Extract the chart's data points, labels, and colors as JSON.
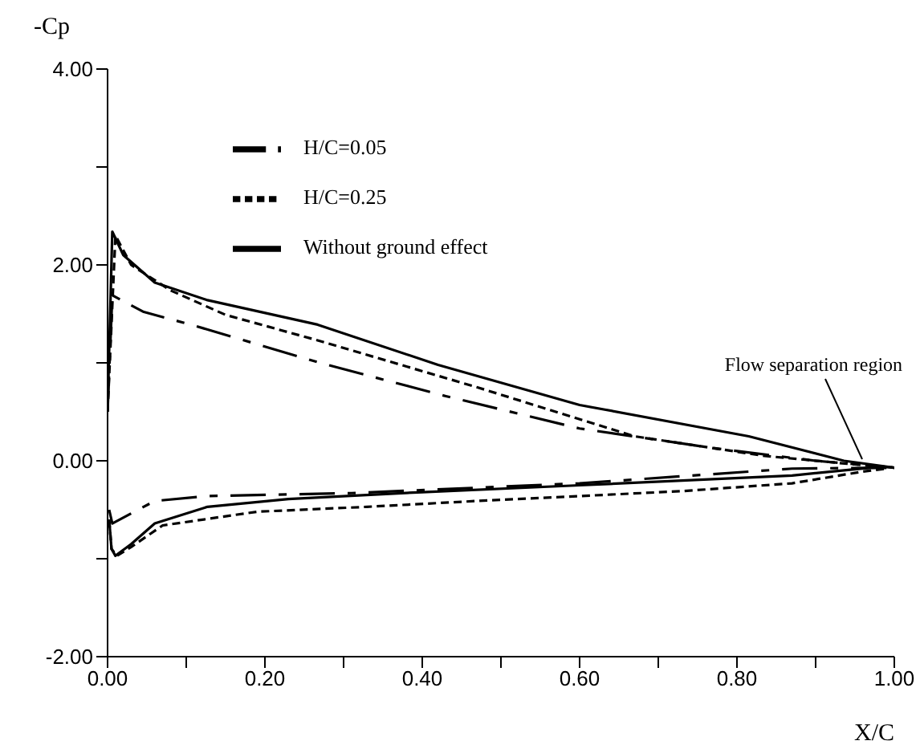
{
  "chart_data": {
    "type": "line",
    "xlabel": "X/C",
    "ylabel": "-Cp",
    "xlim": [
      0,
      1
    ],
    "ylim": [
      -2,
      4
    ],
    "xticks": [
      {
        "value": 0,
        "label": "0.00"
      },
      {
        "value": 0.1,
        "label": null
      },
      {
        "value": 0.2,
        "label": "0.20"
      },
      {
        "value": 0.3,
        "label": null
      },
      {
        "value": 0.4,
        "label": "0.40"
      },
      {
        "value": 0.5,
        "label": null
      },
      {
        "value": 0.6,
        "label": "0.60"
      },
      {
        "value": 0.7,
        "label": null
      },
      {
        "value": 0.8,
        "label": "0.80"
      },
      {
        "value": 0.9,
        "label": null
      },
      {
        "value": 1,
        "label": "1.00"
      }
    ],
    "yticks": [
      {
        "value": -2,
        "label": "-2.00"
      },
      {
        "value": -1,
        "label": null
      },
      {
        "value": 0,
        "label": "0.00"
      },
      {
        "value": 1,
        "label": null
      },
      {
        "value": 2,
        "label": "2.00"
      },
      {
        "value": 3,
        "label": null
      },
      {
        "value": 4,
        "label": "4.00"
      }
    ],
    "grid": false,
    "legend": "top",
    "marker": "none",
    "annotations": [
      {
        "text": "Flow separation region",
        "x": 0.96,
        "y": 0.0
      }
    ],
    "series": [
      {
        "name": "Without ground effect",
        "color": "#000000",
        "line_style": "solid",
        "x": [
          0,
          0.006,
          0.02,
          0.06,
          0.127,
          0.267,
          0.42,
          0.6,
          0.815,
          0.936,
          1.0
        ],
        "values": [
          0.5,
          2.34,
          2.1,
          1.82,
          1.64,
          1.39,
          0.98,
          0.57,
          0.25,
          0.0,
          -0.07
        ]
      },
      {
        "color": "#000000",
        "line_style": "solid",
        "x": [
          0.002,
          0.005,
          0.01,
          0.03,
          0.06,
          0.127,
          0.23,
          0.4,
          0.6,
          0.87,
          0.97,
          0.99
        ],
        "values": [
          -0.6,
          -0.9,
          -0.97,
          -0.85,
          -0.64,
          -0.47,
          -0.39,
          -0.32,
          -0.25,
          -0.15,
          -0.07,
          -0.07
        ]
      },
      {
        "name": "H/C=0.25",
        "color": "#000000",
        "line_style": "dotted",
        "x": [
          0,
          0.01,
          0.03,
          0.08,
          0.15,
          0.267,
          0.47,
          0.67,
          0.835,
          0.94,
          1.0
        ],
        "values": [
          0.5,
          2.3,
          2.0,
          1.74,
          1.49,
          1.23,
          0.75,
          0.25,
          0.05,
          -0.03,
          -0.07
        ]
      },
      {
        "color": "#000000",
        "line_style": "dotted",
        "x": [
          0.002,
          0.005,
          0.012,
          0.03,
          0.07,
          0.19,
          0.33,
          0.47,
          0.73,
          0.87,
          0.96,
          0.99
        ],
        "values": [
          -0.6,
          -0.9,
          -0.97,
          -0.88,
          -0.66,
          -0.52,
          -0.47,
          -0.41,
          -0.31,
          -0.23,
          -0.11,
          -0.08
        ]
      },
      {
        "name": "H/C=0.05",
        "color": "#000000",
        "line_style": "dashed",
        "x": [
          0,
          0.006,
          0.046,
          0.106,
          0.27,
          0.43,
          0.6,
          0.77,
          0.9,
          1.0
        ],
        "values": [
          0.5,
          1.69,
          1.52,
          1.39,
          1.0,
          0.66,
          0.33,
          0.13,
          0.0,
          -0.07
        ]
      },
      {
        "color": "#000000",
        "line_style": "dashed",
        "x": [
          0.002,
          0.006,
          0.06,
          0.127,
          0.31,
          0.6,
          0.87,
          0.99
        ],
        "values": [
          -0.5,
          -0.64,
          -0.41,
          -0.36,
          -0.33,
          -0.23,
          -0.08,
          -0.07
        ]
      }
    ]
  }
}
